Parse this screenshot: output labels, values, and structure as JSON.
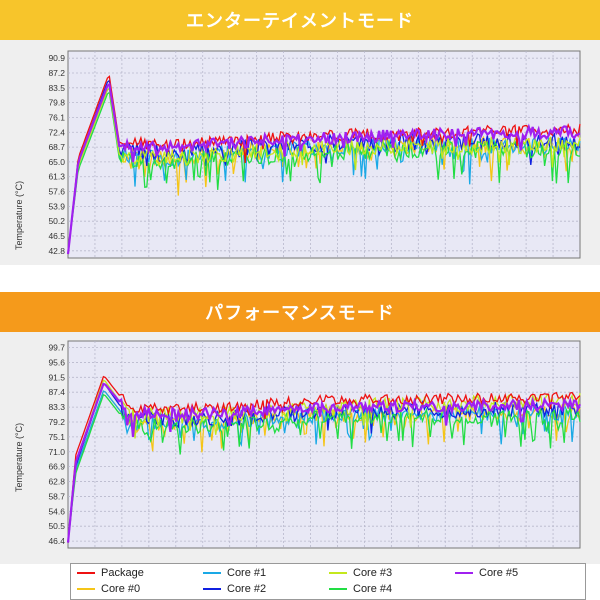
{
  "panels": [
    {
      "banner": "エンターテイメントモード",
      "banner_color": "#f7c52b",
      "ylabel": "Temperature (°C)",
      "ticks": [
        "90.9",
        "87.2",
        "83.5",
        "79.8",
        "76.1",
        "72.4",
        "68.7",
        "65.0",
        "61.3",
        "57.6",
        "53.9",
        "50.2",
        "46.5",
        "42.8"
      ]
    },
    {
      "banner": "パフォーマンスモード",
      "banner_color": "#f59a1b",
      "ylabel": "Temperature (°C)",
      "ticks": [
        "99.7",
        "95.6",
        "91.5",
        "87.4",
        "83.3",
        "79.2",
        "75.1",
        "71.0",
        "66.9",
        "62.8",
        "58.7",
        "54.6",
        "50.5",
        "46.4"
      ]
    }
  ],
  "legend": [
    {
      "label": "Package",
      "color": "#ee1111"
    },
    {
      "label": "Core #1",
      "color": "#1aa9e6"
    },
    {
      "label": "Core #3",
      "color": "#c4e81c"
    },
    {
      "label": "Core #5",
      "color": "#a020f0"
    },
    {
      "label": "Core #0",
      "color": "#f5c518"
    },
    {
      "label": "Core #2",
      "color": "#1020e0"
    },
    {
      "label": "Core #4",
      "color": "#22dd44"
    }
  ],
  "chart_data": [
    {
      "type": "line",
      "title": "エンターテイメントモード",
      "ylabel": "Temperature (°C)",
      "ylim": [
        41.0,
        92.7
      ],
      "grid": true,
      "legend_position": "bottom",
      "series": [
        {
          "name": "Package",
          "profile": [
            [
              0,
              42
            ],
            [
              2,
              66
            ],
            [
              8,
              87
            ],
            [
              10,
              70
            ],
            [
              20,
              69
            ],
            [
              40,
              71
            ],
            [
              60,
              72
            ],
            [
              80,
              72.5
            ],
            [
              100,
              73
            ]
          ]
        },
        {
          "name": "Core #0",
          "profile": [
            [
              0,
              42
            ],
            [
              2,
              64
            ],
            [
              8,
              84
            ],
            [
              10,
              67
            ],
            [
              20,
              66
            ],
            [
              40,
              68
            ],
            [
              60,
              69
            ],
            [
              80,
              69
            ],
            [
              100,
              69.5
            ]
          ]
        },
        {
          "name": "Core #1",
          "profile": [
            [
              0,
              42
            ],
            [
              2,
              64
            ],
            [
              8,
              84
            ],
            [
              10,
              67
            ],
            [
              20,
              66
            ],
            [
              40,
              68
            ],
            [
              60,
              69
            ],
            [
              80,
              69
            ],
            [
              100,
              69.5
            ]
          ]
        },
        {
          "name": "Core #2",
          "profile": [
            [
              0,
              42
            ],
            [
              2,
              65
            ],
            [
              8,
              86
            ],
            [
              10,
              68
            ],
            [
              20,
              67
            ],
            [
              40,
              69
            ],
            [
              60,
              70
            ],
            [
              80,
              70
            ],
            [
              100,
              70
            ]
          ]
        },
        {
          "name": "Core #3",
          "profile": [
            [
              0,
              42
            ],
            [
              2,
              64
            ],
            [
              8,
              84
            ],
            [
              10,
              67
            ],
            [
              20,
              66
            ],
            [
              40,
              68
            ],
            [
              60,
              69
            ],
            [
              80,
              69
            ],
            [
              100,
              69.5
            ]
          ]
        },
        {
          "name": "Core #4",
          "profile": [
            [
              0,
              42
            ],
            [
              2,
              63
            ],
            [
              8,
              83
            ],
            [
              10,
              66
            ],
            [
              20,
              65
            ],
            [
              40,
              67
            ],
            [
              60,
              68
            ],
            [
              80,
              68
            ],
            [
              100,
              68
            ]
          ]
        },
        {
          "name": "Core #5",
          "profile": [
            [
              0,
              42
            ],
            [
              2,
              65
            ],
            [
              8,
              85
            ],
            [
              10,
              69
            ],
            [
              20,
              68.5
            ],
            [
              40,
              70.5
            ],
            [
              60,
              71.5
            ],
            [
              80,
              72
            ],
            [
              100,
              72.5
            ]
          ]
        }
      ]
    },
    {
      "type": "line",
      "title": "パフォーマンスモード",
      "ylabel": "Temperature (°C)",
      "ylim": [
        44.5,
        101.5
      ],
      "grid": true,
      "legend_position": "bottom",
      "series": [
        {
          "name": "Package",
          "profile": [
            [
              0,
              46
            ],
            [
              1.5,
              70
            ],
            [
              7,
              92
            ],
            [
              12,
              83
            ],
            [
              30,
              83
            ],
            [
              45,
              85
            ],
            [
              70,
              85.5
            ],
            [
              100,
              86
            ]
          ]
        },
        {
          "name": "Core #0",
          "profile": [
            [
              0,
              46
            ],
            [
              1.5,
              66
            ],
            [
              7,
              88
            ],
            [
              12,
              79
            ],
            [
              30,
              79
            ],
            [
              45,
              81
            ],
            [
              70,
              81.5
            ],
            [
              100,
              82
            ]
          ]
        },
        {
          "name": "Core #1",
          "profile": [
            [
              0,
              46
            ],
            [
              1.5,
              66
            ],
            [
              7,
              88
            ],
            [
              12,
              79
            ],
            [
              30,
              79
            ],
            [
              45,
              81
            ],
            [
              70,
              81.5
            ],
            [
              100,
              82
            ]
          ]
        },
        {
          "name": "Core #2",
          "profile": [
            [
              0,
              46
            ],
            [
              1.5,
              67
            ],
            [
              7,
              90
            ],
            [
              12,
              80
            ],
            [
              30,
              80
            ],
            [
              45,
              82
            ],
            [
              70,
              82.5
            ],
            [
              100,
              83
            ]
          ]
        },
        {
          "name": "Core #3",
          "profile": [
            [
              0,
              46
            ],
            [
              1.5,
              68
            ],
            [
              7,
              91
            ],
            [
              12,
              81
            ],
            [
              30,
              81
            ],
            [
              45,
              83
            ],
            [
              70,
              84
            ],
            [
              100,
              85
            ]
          ]
        },
        {
          "name": "Core #4",
          "profile": [
            [
              0,
              46
            ],
            [
              1.5,
              65
            ],
            [
              7,
              87
            ],
            [
              12,
              78
            ],
            [
              30,
              78
            ],
            [
              45,
              80
            ],
            [
              70,
              80.5
            ],
            [
              100,
              81
            ]
          ]
        },
        {
          "name": "Core #5",
          "profile": [
            [
              0,
              46
            ],
            [
              1.5,
              68
            ],
            [
              7,
              90
            ],
            [
              12,
              81.5
            ],
            [
              30,
              81.5
            ],
            [
              45,
              83
            ],
            [
              70,
              83.5
            ],
            [
              100,
              84
            ]
          ]
        }
      ]
    }
  ]
}
